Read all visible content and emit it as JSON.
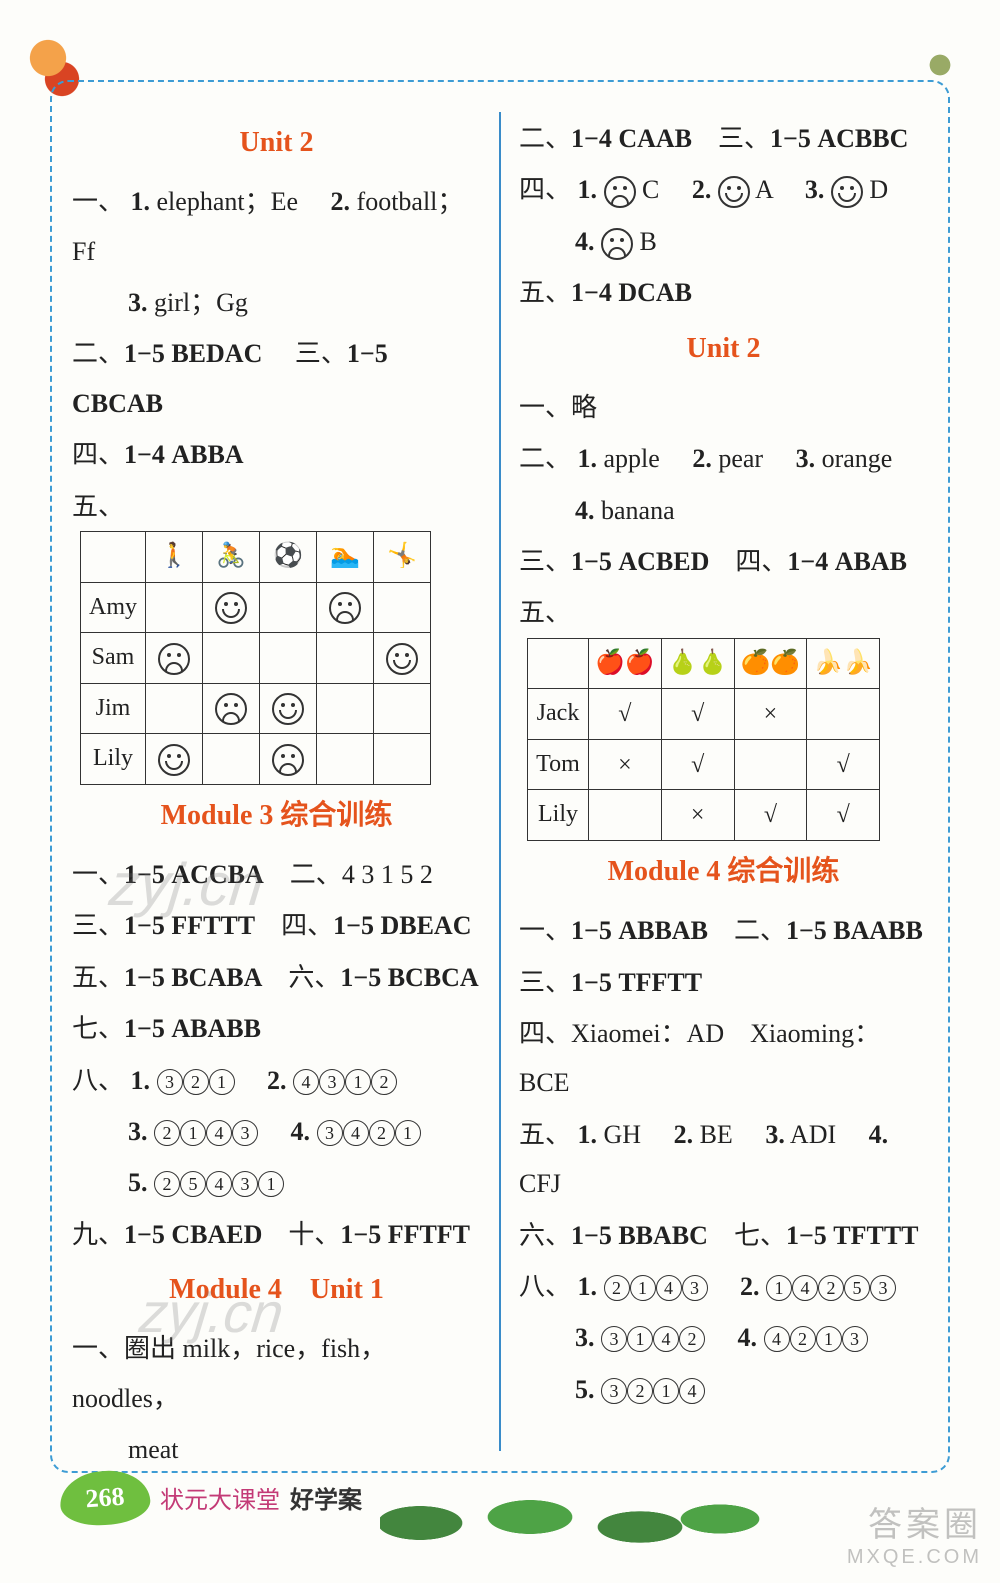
{
  "left": {
    "unit2_title": "Unit 2",
    "u2_q1": {
      "label": "一、",
      "n1": "1.",
      "t1a": "elephant；Ee",
      "n2": "2.",
      "t2": "football；Ff",
      "n3": "3.",
      "t3": "girl；Gg"
    },
    "u2_l2": {
      "a": "二、",
      "av": "1−5 BEDAC",
      "b": "三、",
      "bv": "1−5 CBCAB"
    },
    "u2_l3": {
      "a": "四、",
      "av": "1−4 ABBA"
    },
    "u2_l4label": "五、",
    "table1": {
      "names": [
        "Amy",
        "Sam",
        "Jim",
        "Lily"
      ],
      "cells": [
        [
          "",
          "smile",
          "",
          "sad",
          ""
        ],
        [
          "sad",
          "",
          "",
          "",
          "smile"
        ],
        [
          "",
          "sad",
          "smile",
          "",
          ""
        ],
        [
          "smile",
          "",
          "sad",
          "",
          ""
        ]
      ]
    },
    "m3_title": "Module 3 综合训练",
    "m3_l1": {
      "a": "一、",
      "av": "1−5 ACCBA",
      "b": "二、",
      "bv": "4 3 1 5 2"
    },
    "m3_l2": {
      "a": "三、",
      "av": "1−5 FFTTT",
      "b": "四、",
      "bv": "1−5 DBEAC"
    },
    "m3_l3": {
      "a": "五、",
      "av": "1−5 BCABA",
      "b": "六、",
      "bv": "1−5 BCBCA"
    },
    "m3_l4": {
      "a": "七、",
      "av": "1−5 ABABB"
    },
    "m3_l5label": "八、",
    "m3_l5": {
      "i1": "1.",
      "v1": [
        "3",
        "2",
        "1"
      ],
      "i2": "2.",
      "v2": [
        "4",
        "3",
        "1",
        "2"
      ],
      "i3": "3.",
      "v3": [
        "2",
        "1",
        "4",
        "3"
      ],
      "i4": "4.",
      "v4": [
        "3",
        "4",
        "2",
        "1"
      ],
      "i5": "5.",
      "v5": [
        "2",
        "5",
        "4",
        "3",
        "1"
      ]
    },
    "m3_l6": {
      "a": "九、",
      "av": "1−5 CBAED",
      "b": "十、",
      "bv": "1−5 FFTFT"
    },
    "m4u1_title": "Module 4　Unit 1",
    "m4u1_l1": {
      "a": "一、",
      "pre": "圈出 ",
      "body": "milk，rice，fish，noodles，",
      "cont": "meat"
    }
  },
  "right": {
    "r1": {
      "a": "二、",
      "av": "1−4 CAAB",
      "b": "三、",
      "bv": "1−5 ACBBC"
    },
    "r2label": "四、",
    "r2": {
      "i1": "1.",
      "f1": "sad",
      "t1": "C",
      "i2": "2.",
      "f2": "smile",
      "t2": "A",
      "i3": "3.",
      "f3": "smile",
      "t3": "D",
      "i4": "4.",
      "f4": "sad",
      "t4": "B"
    },
    "r3": {
      "a": "五、",
      "av": "1−4 DCAB"
    },
    "unit2_title": "Unit 2",
    "u2_l1": {
      "a": "一、",
      "av": "略"
    },
    "u2_l2": {
      "a": "二、",
      "i1": "1.",
      "t1": "apple",
      "i2": "2.",
      "t2": "pear",
      "i3": "3.",
      "t3": "orange",
      "i4": "4.",
      "t4": "banana"
    },
    "u2_l3": {
      "a": "三、",
      "av": "1−5 ACBED",
      "b": "四、",
      "bv": "1−4 ABAB"
    },
    "u2_l4label": "五、",
    "table2": {
      "headers": [
        "🍎🍎",
        "🍐🍐",
        "🍊🍊",
        "🍌🍌"
      ],
      "rows": [
        {
          "name": "Jack",
          "c": [
            "√",
            "√",
            "×",
            ""
          ]
        },
        {
          "name": "Tom",
          "c": [
            "×",
            "√",
            "",
            "√"
          ]
        },
        {
          "name": "Lily",
          "c": [
            "",
            "×",
            "√",
            "√"
          ]
        }
      ]
    },
    "m4_title": "Module 4 综合训练",
    "m4_l1": {
      "a": "一、",
      "av": "1−5 ABBAB",
      "b": "二、",
      "bv": "1−5 BAABB"
    },
    "m4_l2": {
      "a": "三、",
      "av": "1−5 TFFTT"
    },
    "m4_l3": {
      "a": "四、",
      "t1": "Xiaomei：AD",
      "t2": "Xiaoming：BCE"
    },
    "m4_l4": {
      "a": "五、",
      "i1": "1.",
      "t1": "GH",
      "i2": "2.",
      "t2": "BE",
      "i3": "3.",
      "t3": "ADI",
      "i4": "4.",
      "t4": "CFJ"
    },
    "m4_l5": {
      "a": "六、",
      "av": "1−5 BBABC",
      "b": "七、",
      "bv": "1−5 TFTTT"
    },
    "m4_l6label": "八、",
    "m4_l6": {
      "i1": "1.",
      "v1": [
        "2",
        "1",
        "4",
        "3"
      ],
      "i2": "2.",
      "v2": [
        "1",
        "4",
        "2",
        "5",
        "3"
      ],
      "i3": "3.",
      "v3": [
        "3",
        "1",
        "4",
        "2"
      ],
      "i4": "4.",
      "v4": [
        "4",
        "2",
        "1",
        "3"
      ],
      "i5": "5.",
      "v5": [
        "3",
        "2",
        "1",
        "4"
      ]
    }
  },
  "footer": {
    "page": "268",
    "brand": "状元大课堂",
    "sub": "好学案"
  },
  "watermark": "zyj.cn",
  "corner": {
    "a": "答案圈",
    "b": "MXQE.COM"
  }
}
